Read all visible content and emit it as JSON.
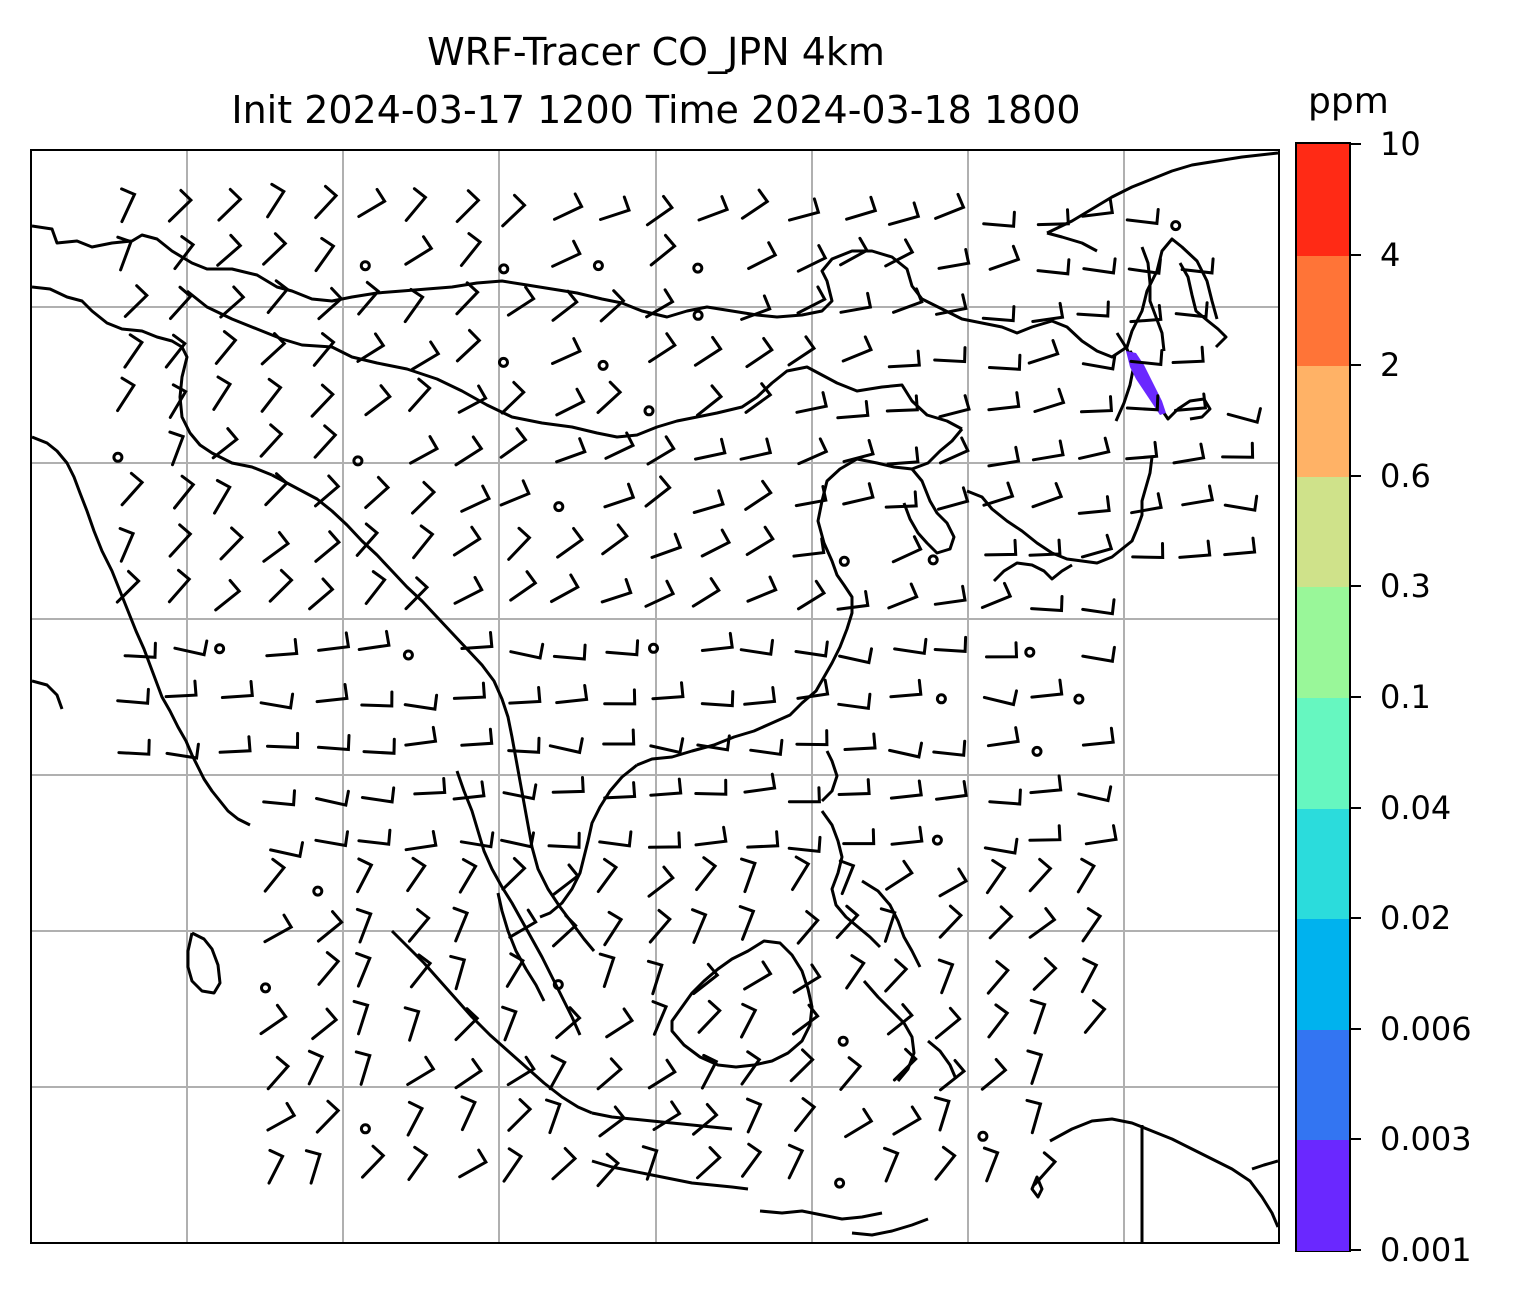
{
  "title": {
    "line1": "WRF-Tracer CO_JPN 4km",
    "line2": "Init 2024-03-17 1200 Time 2024-03-18 1800"
  },
  "colorbar": {
    "unit": "ppm",
    "levels": [
      "0.001",
      "0.003",
      "0.006",
      "0.02",
      "0.04",
      "0.1",
      "0.3",
      "0.6",
      "2",
      "4",
      "10"
    ],
    "colors": [
      "#6a28ff",
      "#3375f2",
      "#00b2ee",
      "#2bdcdc",
      "#66f7c0",
      "#99f799",
      "#cfe28a",
      "#ffb266",
      "#ff7437",
      "#ff2a15"
    ]
  },
  "map": {
    "projection": "lat-lon with gridlines",
    "grid": true,
    "overlay": "wind barbs",
    "highlight": {
      "region": "northern Japan / Sakhalin",
      "level_range": "0.001-0.003",
      "color": "#6a28ff"
    }
  }
}
